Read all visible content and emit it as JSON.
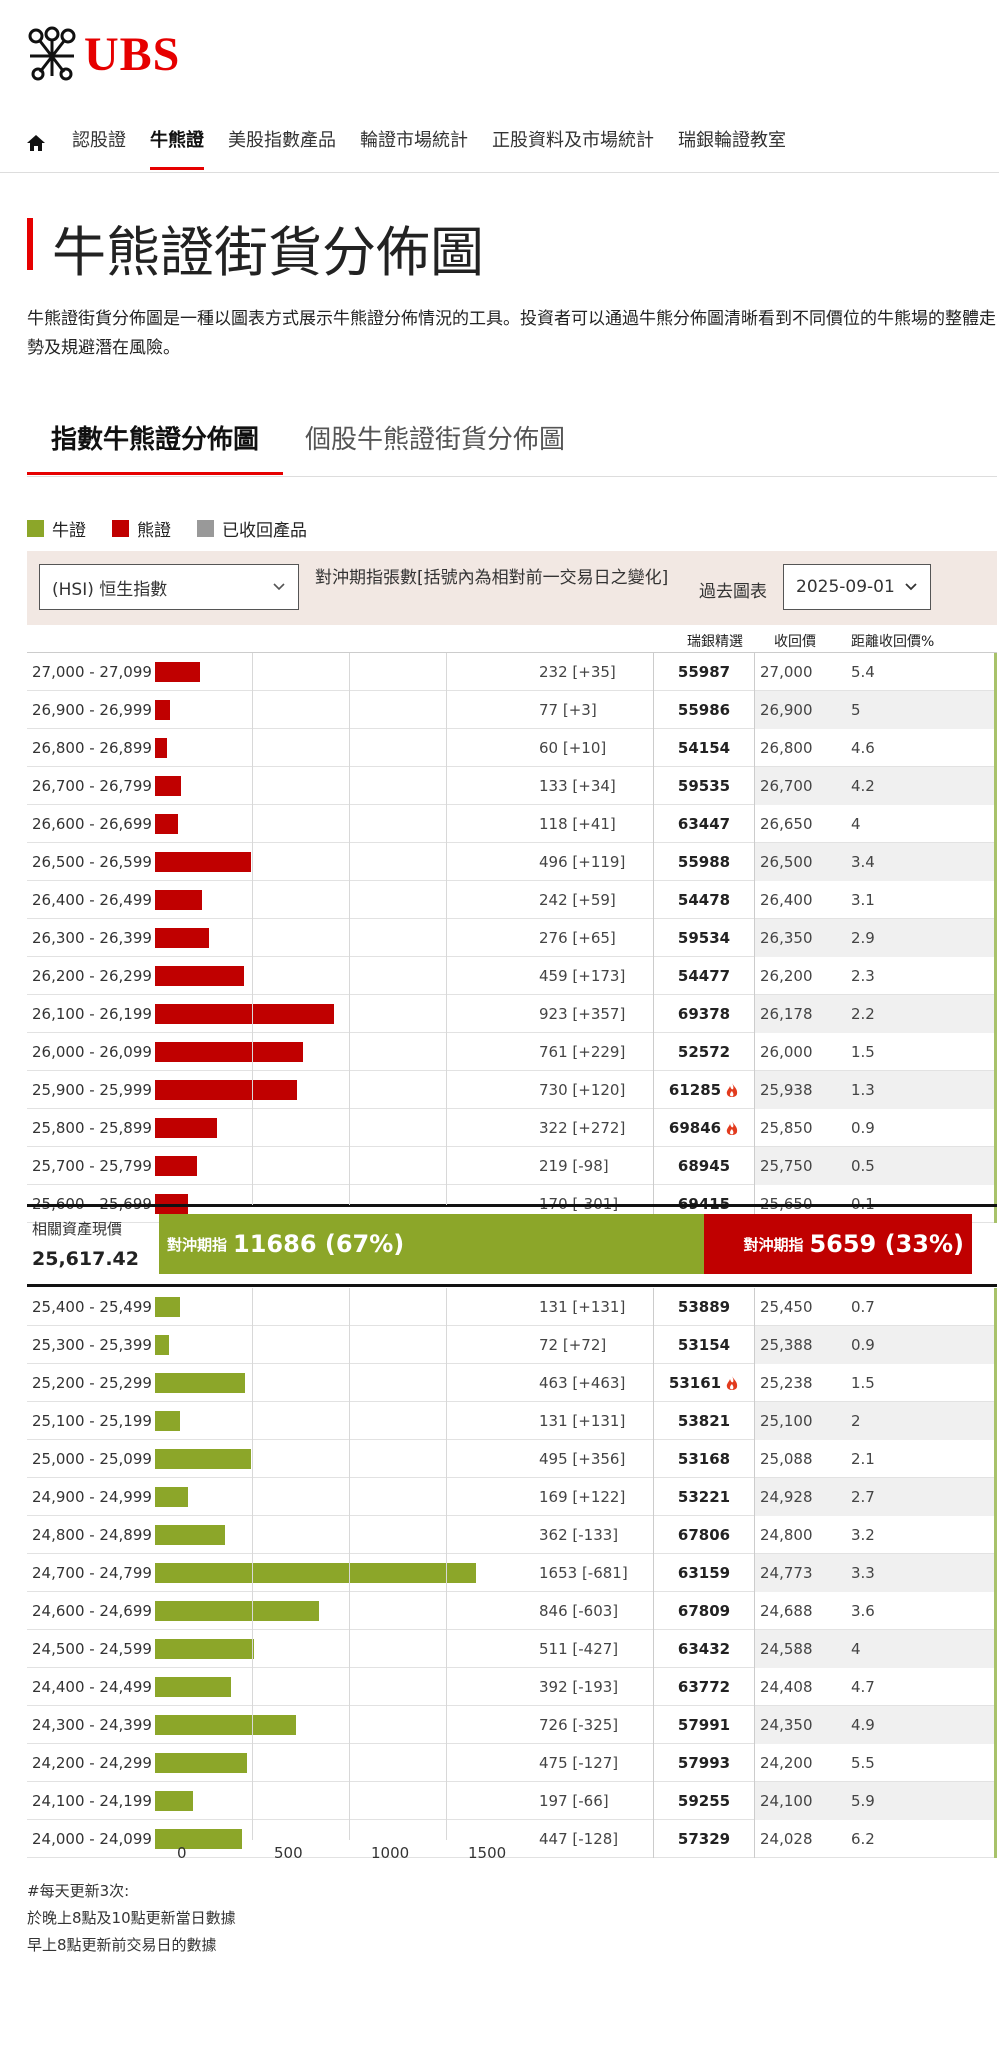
{
  "brand": {
    "logo_text": "UBS"
  },
  "nav": {
    "items": [
      "認股證",
      "牛熊證",
      "美股指數產品",
      "輪證市場統計",
      "正股資料及市場統計",
      "瑞銀輪證教室"
    ]
  },
  "page": {
    "title": "牛熊證街貨分佈圖",
    "description": "牛熊證街貨分佈圖是一種以圖表方式展示牛熊證分佈情況的工具。投資者可以通過牛熊分佈圖清晰看到不同價位的牛熊場的整體走勢及規避潛在風險。"
  },
  "tabs": [
    "指數牛熊證分佈圖",
    "個股牛熊證街貨分佈圖"
  ],
  "legend": [
    {
      "label": "牛證",
      "color": "#8ca629"
    },
    {
      "label": "熊證",
      "color": "#c00000"
    },
    {
      "label": "已收回產品",
      "color": "#999999"
    }
  ],
  "controls": {
    "index_select": "(HSI) 恒生指數",
    "info_text": "對沖期指張數[括號內為相對前一交易日之變化]",
    "past_chart_label": "過去圖表",
    "date_select": "2025-09-01"
  },
  "table_headers": {
    "code": "瑞銀精選",
    "strike": "收回價",
    "distance": "距離收回價%"
  },
  "current_asset": {
    "label": "相關資產現價",
    "value": "25,617.42",
    "bull_prefix": "對沖期指",
    "bull_text": "11686 (67%)",
    "bear_prefix": "對沖期指",
    "bear_text": "5659 (33%)",
    "bull_share": 0.67
  },
  "chart_data": {
    "type": "bar",
    "orientation": "horizontal",
    "x_ticks": [
      "0",
      "500",
      "1000",
      "1500"
    ],
    "xlim": [
      0,
      1650
    ],
    "bear_rows": [
      {
        "range": "27,000 - 27,099",
        "value": 232,
        "label": "232 [+35]",
        "code": "55987",
        "strike": "27,000",
        "pct": "5.4",
        "hot": false
      },
      {
        "range": "26,900 - 26,999",
        "value": 77,
        "label": "77 [+3]",
        "code": "55986",
        "strike": "26,900",
        "pct": "5",
        "hot": false
      },
      {
        "range": "26,800 - 26,899",
        "value": 60,
        "label": "60 [+10]",
        "code": "54154",
        "strike": "26,800",
        "pct": "4.6",
        "hot": false
      },
      {
        "range": "26,700 - 26,799",
        "value": 133,
        "label": "133 [+34]",
        "code": "59535",
        "strike": "26,700",
        "pct": "4.2",
        "hot": false
      },
      {
        "range": "26,600 - 26,699",
        "value": 118,
        "label": "118 [+41]",
        "code": "63447",
        "strike": "26,650",
        "pct": "4",
        "hot": false
      },
      {
        "range": "26,500 - 26,599",
        "value": 496,
        "label": "496 [+119]",
        "code": "55988",
        "strike": "26,500",
        "pct": "3.4",
        "hot": false
      },
      {
        "range": "26,400 - 26,499",
        "value": 242,
        "label": "242 [+59]",
        "code": "54478",
        "strike": "26,400",
        "pct": "3.1",
        "hot": false
      },
      {
        "range": "26,300 - 26,399",
        "value": 276,
        "label": "276 [+65]",
        "code": "59534",
        "strike": "26,350",
        "pct": "2.9",
        "hot": false
      },
      {
        "range": "26,200 - 26,299",
        "value": 459,
        "label": "459 [+173]",
        "code": "54477",
        "strike": "26,200",
        "pct": "2.3",
        "hot": false
      },
      {
        "range": "26,100 - 26,199",
        "value": 923,
        "label": "923 [+357]",
        "code": "69378",
        "strike": "26,178",
        "pct": "2.2",
        "hot": false
      },
      {
        "range": "26,000 - 26,099",
        "value": 761,
        "label": "761 [+229]",
        "code": "52572",
        "strike": "26,000",
        "pct": "1.5",
        "hot": false
      },
      {
        "range": "25,900 - 25,999",
        "value": 730,
        "label": "730 [+120]",
        "code": "61285",
        "strike": "25,938",
        "pct": "1.3",
        "hot": true
      },
      {
        "range": "25,800 - 25,899",
        "value": 322,
        "label": "322 [+272]",
        "code": "69846",
        "strike": "25,850",
        "pct": "0.9",
        "hot": true
      },
      {
        "range": "25,700 - 25,799",
        "value": 219,
        "label": "219 [-98]",
        "code": "68945",
        "strike": "25,750",
        "pct": "0.5",
        "hot": false
      },
      {
        "range": "25,600 - 25,699",
        "value": 170,
        "label": "170 [-301]",
        "code": "69415",
        "strike": "25,650",
        "pct": "0.1",
        "hot": false
      }
    ],
    "bull_rows": [
      {
        "range": "25,400 - 25,499",
        "value": 131,
        "label": "131 [+131]",
        "code": "53889",
        "strike": "25,450",
        "pct": "0.7",
        "hot": false
      },
      {
        "range": "25,300 - 25,399",
        "value": 72,
        "label": "72 [+72]",
        "code": "53154",
        "strike": "25,388",
        "pct": "0.9",
        "hot": false
      },
      {
        "range": "25,200 - 25,299",
        "value": 463,
        "label": "463 [+463]",
        "code": "53161",
        "strike": "25,238",
        "pct": "1.5",
        "hot": true
      },
      {
        "range": "25,100 - 25,199",
        "value": 131,
        "label": "131 [+131]",
        "code": "53821",
        "strike": "25,100",
        "pct": "2",
        "hot": false
      },
      {
        "range": "25,000 - 25,099",
        "value": 495,
        "label": "495 [+356]",
        "code": "53168",
        "strike": "25,088",
        "pct": "2.1",
        "hot": false
      },
      {
        "range": "24,900 - 24,999",
        "value": 169,
        "label": "169 [+122]",
        "code": "53221",
        "strike": "24,928",
        "pct": "2.7",
        "hot": false
      },
      {
        "range": "24,800 - 24,899",
        "value": 362,
        "label": "362 [-133]",
        "code": "67806",
        "strike": "24,800",
        "pct": "3.2",
        "hot": false
      },
      {
        "range": "24,700 - 24,799",
        "value": 1653,
        "label": "1653 [-681]",
        "code": "63159",
        "strike": "24,773",
        "pct": "3.3",
        "hot": false
      },
      {
        "range": "24,600 - 24,699",
        "value": 846,
        "label": "846 [-603]",
        "code": "67809",
        "strike": "24,688",
        "pct": "3.6",
        "hot": false
      },
      {
        "range": "24,500 - 24,599",
        "value": 511,
        "label": "511 [-427]",
        "code": "63432",
        "strike": "24,588",
        "pct": "4",
        "hot": false
      },
      {
        "range": "24,400 - 24,499",
        "value": 392,
        "label": "392 [-193]",
        "code": "63772",
        "strike": "24,408",
        "pct": "4.7",
        "hot": false
      },
      {
        "range": "24,300 - 24,399",
        "value": 726,
        "label": "726 [-325]",
        "code": "57991",
        "strike": "24,350",
        "pct": "4.9",
        "hot": false
      },
      {
        "range": "24,200 - 24,299",
        "value": 475,
        "label": "475 [-127]",
        "code": "57993",
        "strike": "24,200",
        "pct": "5.5",
        "hot": false
      },
      {
        "range": "24,100 - 24,199",
        "value": 197,
        "label": "197 [-66]",
        "code": "59255",
        "strike": "24,100",
        "pct": "5.9",
        "hot": false
      },
      {
        "range": "24,000 - 24,099",
        "value": 447,
        "label": "447 [-128]",
        "code": "57329",
        "strike": "24,028",
        "pct": "6.2",
        "hot": false
      }
    ]
  },
  "footnote": [
    "#每天更新3次:",
    "於晚上8點及10點更新當日數據",
    "早上8點更新前交易日的數據"
  ]
}
